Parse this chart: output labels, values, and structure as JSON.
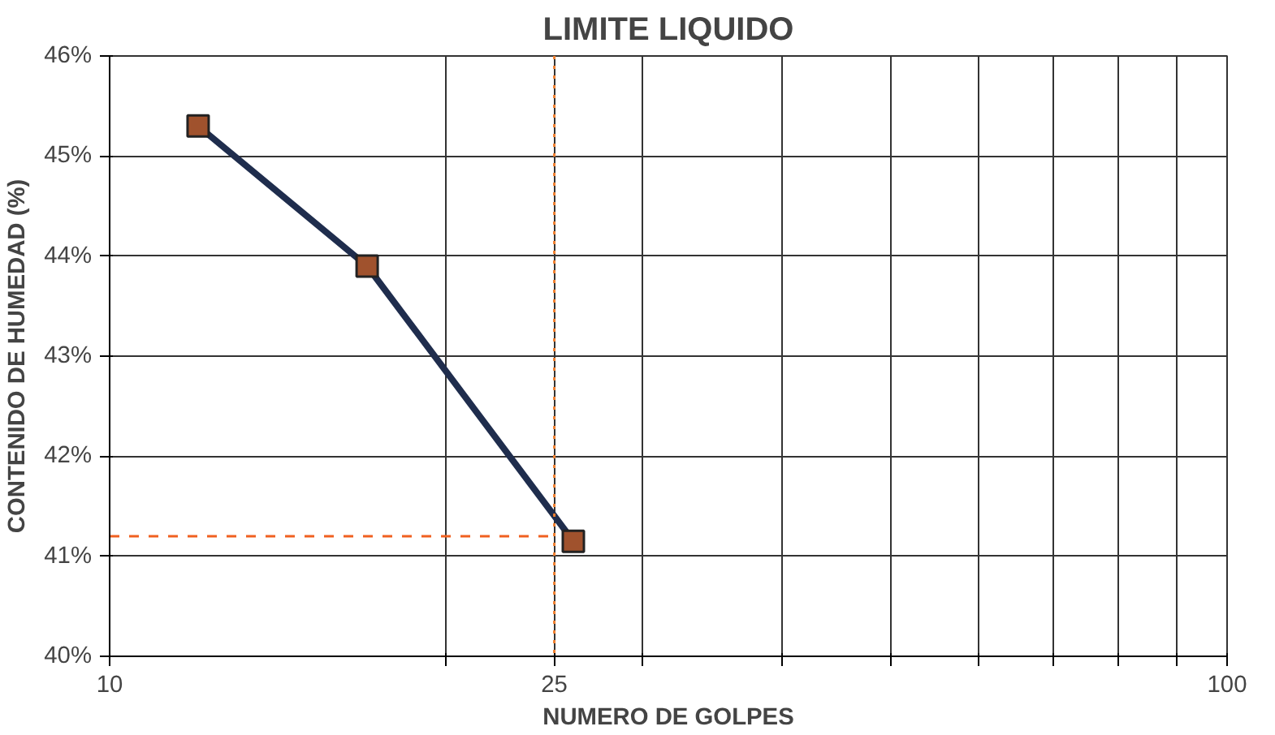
{
  "chart_data": {
    "type": "line",
    "title": "LIMITE LIQUIDO",
    "xlabel": "NUMERO DE GOLPES",
    "ylabel": "CONTENIDO DE HUMEDAD (%)",
    "x": [
      12,
      17,
      26
    ],
    "series": [
      {
        "color": "#1f2d4d",
        "values": [
          45.3,
          43.9,
          41.15
        ]
      }
    ],
    "log": "x",
    "xlim": [
      10,
      100
    ],
    "xticks": [
      10,
      {
        "value": 20,
        "label": null
      },
      25,
      {
        "value": 30,
        "label": null
      },
      {
        "value": 40,
        "label": null
      },
      {
        "value": 50,
        "label": null
      },
      {
        "value": 60,
        "label": null
      },
      {
        "value": 70,
        "label": null
      },
      {
        "value": 80,
        "label": null
      },
      {
        "value": 90,
        "label": null
      },
      100
    ],
    "ylim": [
      40,
      46
    ],
    "yticks": [
      {
        "value": 40,
        "label": "40%"
      },
      {
        "value": 41,
        "label": "41%"
      },
      {
        "value": 42,
        "label": "42%"
      },
      {
        "value": 43,
        "label": "43%"
      },
      {
        "value": 44,
        "label": "44%"
      },
      {
        "value": 45,
        "label": "45%"
      },
      {
        "value": 46,
        "label": "46%"
      }
    ],
    "ref_lines": [
      {
        "axis": "x",
        "value": 25,
        "color": "#f08030",
        "line_style": "dotted"
      },
      {
        "axis": "y",
        "value": 41.2,
        "color": "#f06020",
        "line_style": "dashed"
      }
    ],
    "grid": true,
    "marker": "square",
    "line_style": "solid"
  }
}
